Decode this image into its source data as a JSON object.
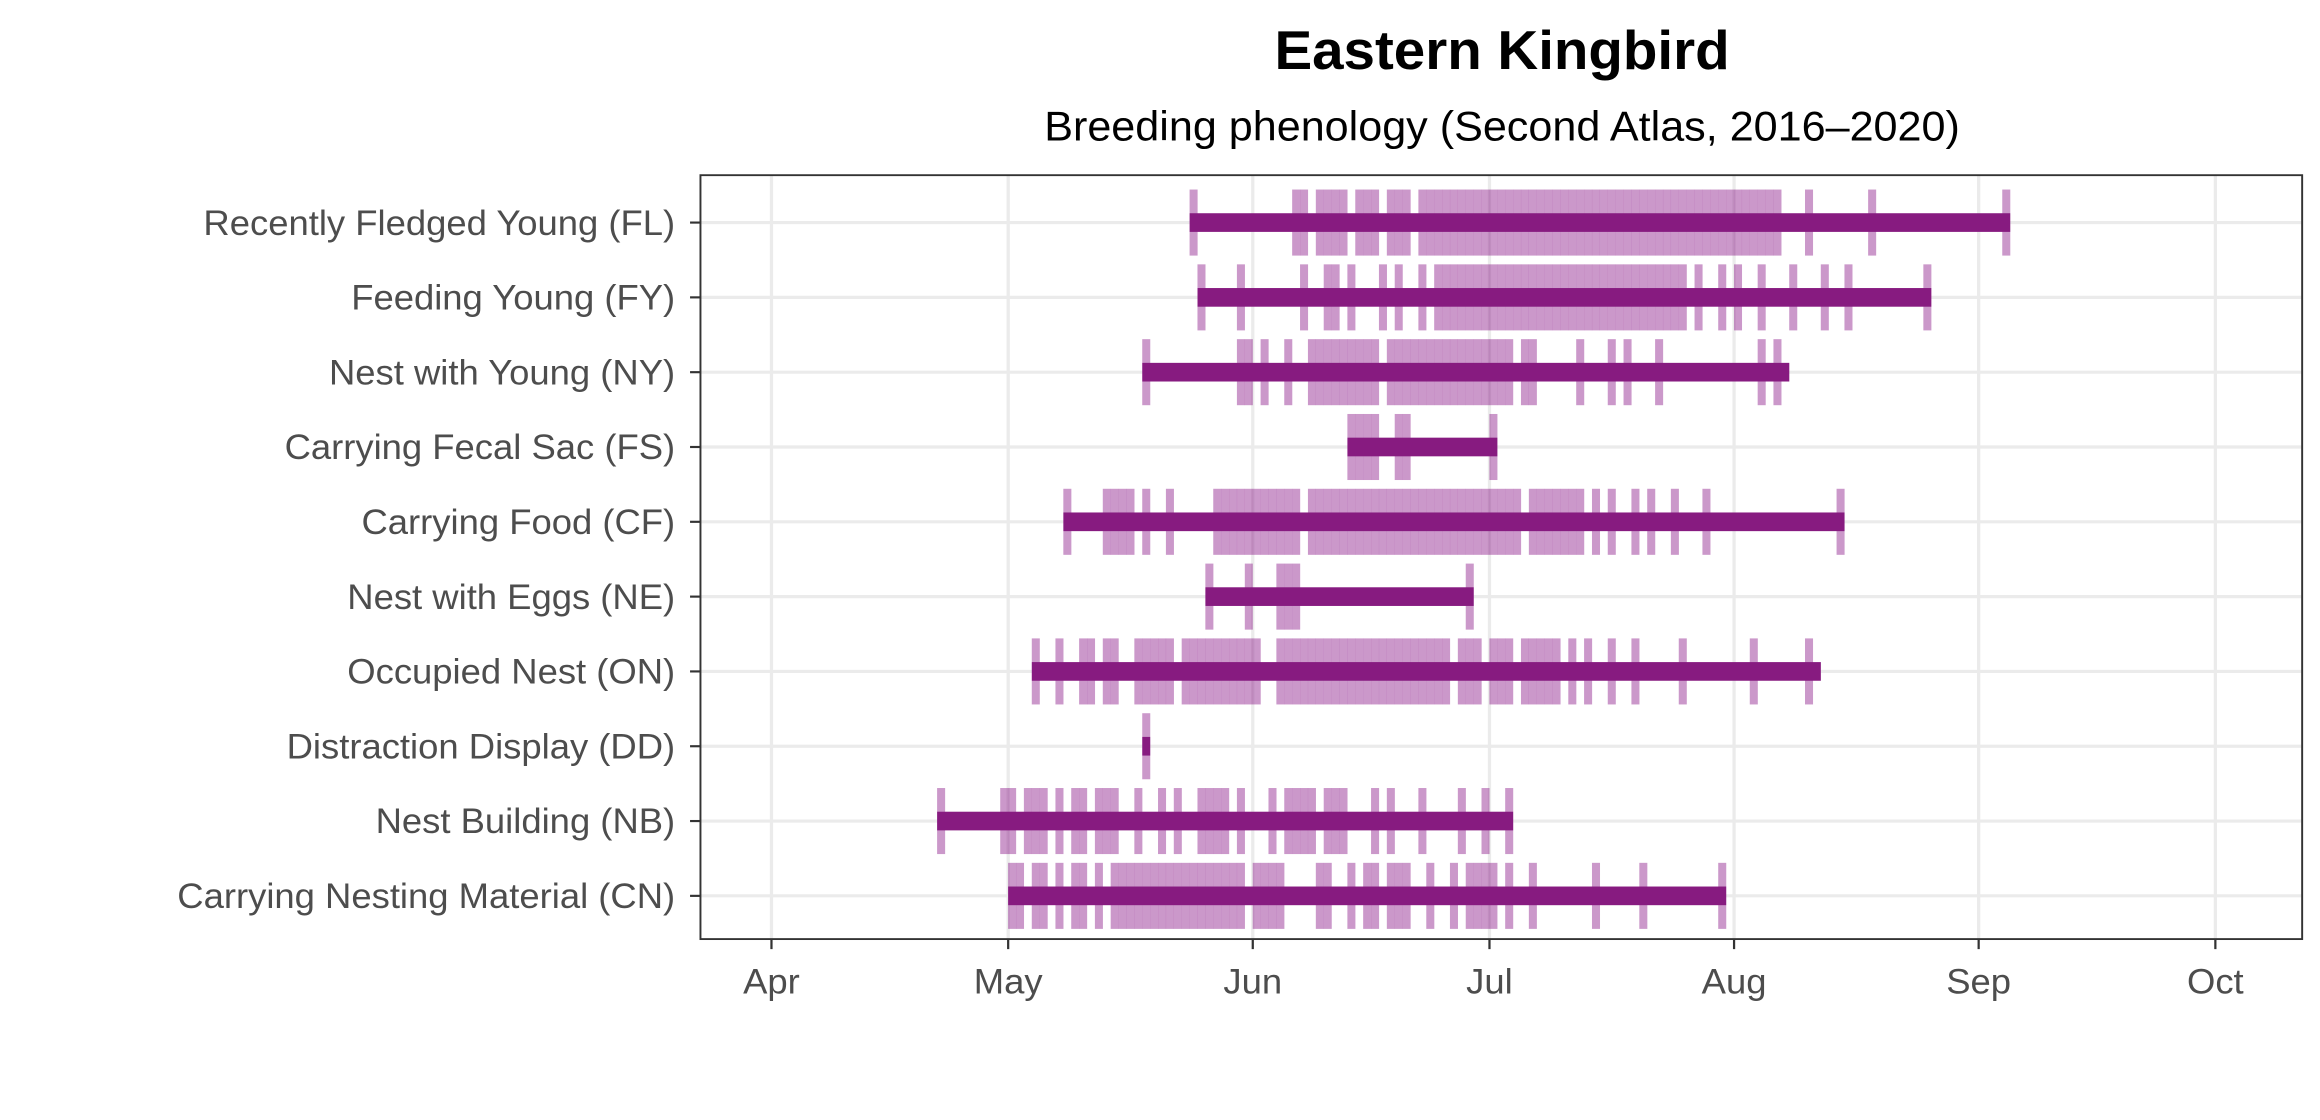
{
  "chart_data": {
    "type": "phenology",
    "title": "Eastern Kingbird",
    "subtitle": "Breeding phenology (Second Atlas, 2016–2020)",
    "xlabel": "",
    "ylabel": "",
    "x_unit": "day of year",
    "xlim": [
      82,
      285
    ],
    "x_ticks": [
      {
        "label": "Apr",
        "day": 91
      },
      {
        "label": "May",
        "day": 121
      },
      {
        "label": "Jun",
        "day": 152
      },
      {
        "label": "Jul",
        "day": 182
      },
      {
        "label": "Aug",
        "day": 213
      },
      {
        "label": "Sep",
        "day": 244
      },
      {
        "label": "Oct",
        "day": 274
      }
    ],
    "grid": true,
    "colors": {
      "bar": "#871b80",
      "tick": "#8b1a89"
    },
    "series": [
      {
        "name": "Recently Fledged Young (FL)",
        "start": 144,
        "end": 247,
        "obs_days": [
          144,
          157,
          158,
          160,
          161,
          162,
          163,
          165,
          166,
          167,
          169,
          170,
          171,
          173,
          174,
          175,
          176,
          177,
          178,
          179,
          180,
          181,
          182,
          183,
          184,
          185,
          186,
          187,
          188,
          189,
          190,
          191,
          192,
          193,
          194,
          195,
          196,
          197,
          198,
          199,
          200,
          201,
          202,
          203,
          204,
          205,
          206,
          207,
          208,
          209,
          210,
          211,
          212,
          213,
          214,
          215,
          216,
          217,
          218,
          222,
          230,
          247
        ]
      },
      {
        "name": "Feeding Young (FY)",
        "start": 145,
        "end": 237,
        "obs_days": [
          145,
          150,
          158,
          161,
          162,
          164,
          168,
          170,
          173,
          175,
          176,
          177,
          178,
          179,
          180,
          181,
          182,
          183,
          184,
          185,
          186,
          187,
          188,
          189,
          190,
          191,
          192,
          193,
          194,
          195,
          196,
          197,
          198,
          199,
          200,
          201,
          202,
          203,
          204,
          205,
          206,
          208,
          211,
          213,
          216,
          220,
          224,
          227,
          237
        ]
      },
      {
        "name": "Nest with Young (NY)",
        "start": 138,
        "end": 219,
        "obs_days": [
          138,
          150,
          151,
          153,
          156,
          159,
          160,
          161,
          162,
          163,
          164,
          165,
          166,
          167,
          169,
          170,
          171,
          172,
          173,
          174,
          175,
          176,
          177,
          178,
          179,
          180,
          181,
          182,
          183,
          184,
          186,
          187,
          193,
          197,
          199,
          203,
          216,
          218
        ]
      },
      {
        "name": "Carrying Fecal Sac (FS)",
        "start": 164,
        "end": 182,
        "obs_days": [
          164,
          165,
          166,
          167,
          170,
          171,
          182
        ]
      },
      {
        "name": "Carrying Food (CF)",
        "start": 128,
        "end": 226,
        "obs_days": [
          128,
          133,
          134,
          135,
          136,
          138,
          141,
          147,
          148,
          149,
          150,
          151,
          152,
          153,
          154,
          155,
          156,
          157,
          159,
          160,
          161,
          162,
          163,
          164,
          165,
          166,
          167,
          168,
          169,
          170,
          171,
          172,
          173,
          174,
          175,
          176,
          177,
          178,
          179,
          180,
          181,
          182,
          183,
          184,
          185,
          187,
          188,
          189,
          190,
          191,
          192,
          193,
          195,
          197,
          200,
          202,
          205,
          209,
          226
        ]
      },
      {
        "name": "Nest with Eggs (NE)",
        "start": 146,
        "end": 179,
        "obs_days": [
          146,
          151,
          155,
          156,
          157,
          179
        ]
      },
      {
        "name": "Occupied Nest (ON)",
        "start": 124,
        "end": 223,
        "obs_days": [
          124,
          127,
          130,
          131,
          133,
          134,
          137,
          138,
          139,
          140,
          141,
          143,
          144,
          145,
          146,
          147,
          148,
          149,
          150,
          151,
          152,
          155,
          156,
          157,
          158,
          159,
          160,
          161,
          162,
          163,
          164,
          165,
          166,
          167,
          168,
          169,
          170,
          171,
          172,
          173,
          174,
          175,
          176,
          178,
          179,
          180,
          182,
          183,
          184,
          186,
          187,
          188,
          189,
          190,
          192,
          194,
          197,
          200,
          206,
          215,
          222
        ]
      },
      {
        "name": "Distraction Display (DD)",
        "start": 138,
        "end": 138,
        "obs_days": [
          138
        ]
      },
      {
        "name": "Nest Building (NB)",
        "start": 112,
        "end": 184,
        "obs_days": [
          112,
          120,
          121,
          123,
          124,
          125,
          127,
          129,
          130,
          132,
          133,
          134,
          137,
          140,
          142,
          145,
          146,
          147,
          148,
          150,
          154,
          156,
          157,
          158,
          159,
          161,
          162,
          163,
          167,
          169,
          173,
          178,
          181,
          184
        ]
      },
      {
        "name": "Carrying Nesting Material (CN)",
        "start": 121,
        "end": 211,
        "obs_days": [
          121,
          122,
          124,
          125,
          127,
          129,
          130,
          132,
          134,
          135,
          136,
          137,
          138,
          139,
          140,
          141,
          142,
          143,
          144,
          145,
          146,
          147,
          148,
          149,
          150,
          152,
          153,
          154,
          155,
          160,
          161,
          164,
          166,
          167,
          169,
          170,
          171,
          174,
          177,
          179,
          180,
          181,
          182,
          184,
          187,
          195,
          201,
          211
        ]
      }
    ]
  }
}
